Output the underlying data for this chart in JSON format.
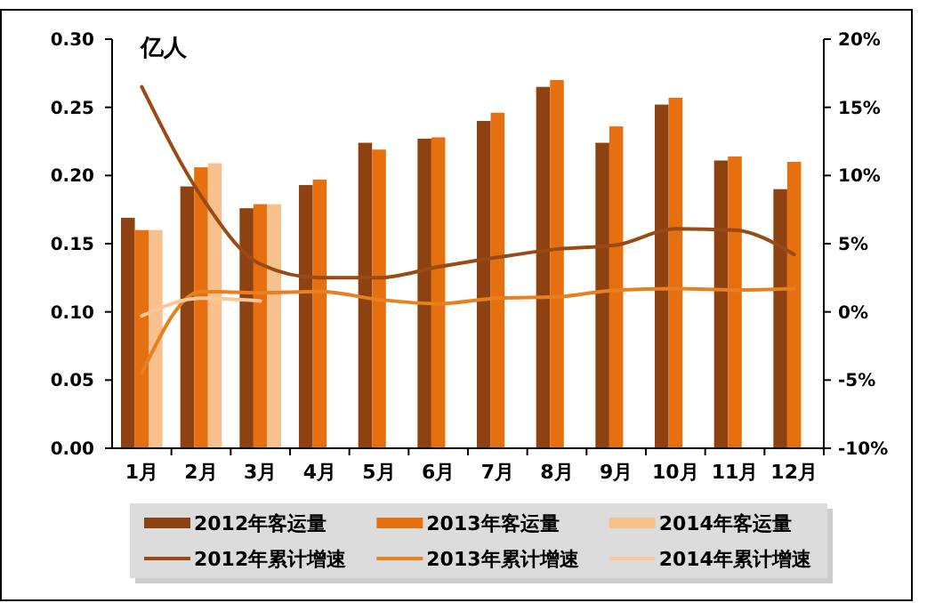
{
  "chart_data": {
    "type": "bar",
    "ylabel": "亿人",
    "categories": [
      "1月",
      "2月",
      "3月",
      "4月",
      "5月",
      "6月",
      "7月",
      "8月",
      "9月",
      "10月",
      "11月",
      "12月"
    ],
    "series": [
      {
        "name": "2012年客运量",
        "color": "#8e4211",
        "values": [
          0.169,
          0.192,
          0.176,
          0.193,
          0.224,
          0.227,
          0.24,
          0.265,
          0.224,
          0.252,
          0.211,
          0.19
        ]
      },
      {
        "name": "2013年客运量",
        "color": "#e6700f",
        "values": [
          0.16,
          0.206,
          0.179,
          0.197,
          0.219,
          0.228,
          0.246,
          0.27,
          0.236,
          0.257,
          0.214,
          0.21
        ]
      },
      {
        "name": "2014年客运量",
        "color": "#f8c08c",
        "values": [
          0.16,
          0.209,
          0.179,
          null,
          null,
          null,
          null,
          null,
          null,
          null,
          null,
          null
        ]
      },
      {
        "name": "2012年累计增速",
        "type": "line",
        "axis": "y2",
        "color": "#9a4a14",
        "values": [
          16.5,
          8.5,
          3.5,
          2.5,
          2.5,
          3.3,
          4.0,
          4.6,
          4.9,
          6.1,
          6.0,
          4.2
        ]
      },
      {
        "name": "2013年累计增速",
        "type": "line",
        "axis": "y2",
        "color": "#e8801f",
        "values": [
          -4.5,
          1.5,
          1.4,
          1.5,
          0.9,
          0.6,
          1.0,
          1.1,
          1.6,
          1.7,
          1.6,
          1.7
        ]
      },
      {
        "name": "2014年累计增速",
        "type": "line",
        "axis": "y2",
        "color": "#f9c89a",
        "values": [
          -0.3,
          1.0,
          0.8,
          null,
          null,
          null,
          null,
          null,
          null,
          null,
          null,
          null
        ]
      }
    ],
    "ylim": [
      0,
      0.3
    ],
    "yticks": [
      {
        "value": 0,
        "label": "0.00"
      },
      {
        "value": 0.05,
        "label": "0.05"
      },
      {
        "value": 0.1,
        "label": "0.10"
      },
      {
        "value": 0.15,
        "label": "0.15"
      },
      {
        "value": 0.2,
        "label": "0.20"
      },
      {
        "value": 0.25,
        "label": "0.25"
      },
      {
        "value": 0.3,
        "label": "0.30"
      }
    ],
    "y2lim": [
      -10,
      20
    ],
    "y2ticks": [
      {
        "value": -10,
        "label": "-10%"
      },
      {
        "value": -5,
        "label": "-5%"
      },
      {
        "value": 0,
        "label": "0%"
      },
      {
        "value": 5,
        "label": "5%"
      },
      {
        "value": 10,
        "label": "10%"
      },
      {
        "value": 15,
        "label": "15%"
      },
      {
        "value": 20,
        "label": "20%"
      }
    ],
    "grid": false,
    "legend": "bottom"
  }
}
